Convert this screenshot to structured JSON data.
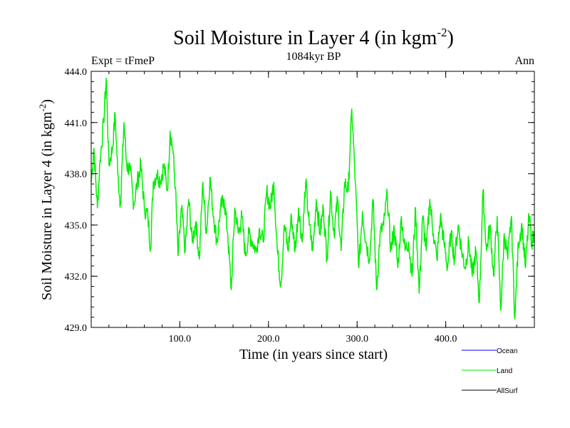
{
  "chart_data": {
    "type": "line",
    "title": "Soil Moisture in Layer 4 (in kgm",
    "title_sup": "-2",
    "title_close": ")",
    "subtitle": "1084kyr BP",
    "left_label": "Expt = tFmeP",
    "right_label": "Ann",
    "xlabel": "Time (in years since start)",
    "ylabel": "Soil Moisture in Layer 4 (in kgm",
    "ylabel_sup": "-2",
    "ylabel_close": ")",
    "xlim": [
      0,
      500
    ],
    "ylim": [
      429.0,
      444.0
    ],
    "x_ticks": [
      100,
      200,
      300,
      400
    ],
    "x_tick_labels": [
      "100.0",
      "200.0",
      "300.0",
      "400.0"
    ],
    "y_ticks": [
      429,
      432,
      435,
      438,
      441,
      444
    ],
    "y_tick_labels": [
      "429.0",
      "432.0",
      "435.0",
      "438.0",
      "441.0",
      "444.0"
    ],
    "legend": [
      {
        "name": "Ocean",
        "color": "#0000ff"
      },
      {
        "name": "Land",
        "color": "#00ee00"
      },
      {
        "name": "AllSurf",
        "color": "#000000"
      }
    ],
    "series": [
      {
        "name": "Land",
        "color": "#00ee00",
        "anchors": [
          [
            0,
            437.5
          ],
          [
            3,
            439.5
          ],
          [
            7,
            436.0
          ],
          [
            10,
            438.8
          ],
          [
            14,
            441.0
          ],
          [
            17,
            443.6
          ],
          [
            20,
            438.5
          ],
          [
            24,
            439.5
          ],
          [
            27,
            441.5
          ],
          [
            30,
            438.0
          ],
          [
            33,
            436.2
          ],
          [
            37,
            441.0
          ],
          [
            40,
            438.5
          ],
          [
            44,
            438.2
          ],
          [
            48,
            436.2
          ],
          [
            52,
            437.5
          ],
          [
            56,
            438.5
          ],
          [
            60,
            436.0
          ],
          [
            64,
            435.5
          ],
          [
            67,
            433.6
          ],
          [
            70,
            437.5
          ],
          [
            74,
            438.0
          ],
          [
            78,
            437.6
          ],
          [
            82,
            438.5
          ],
          [
            86,
            437.0
          ],
          [
            89,
            440.5
          ],
          [
            92,
            439.5
          ],
          [
            95,
            437.2
          ],
          [
            98,
            433.2
          ],
          [
            102,
            436.0
          ],
          [
            106,
            433.5
          ],
          [
            110,
            436.5
          ],
          [
            114,
            434.0
          ],
          [
            118,
            435.2
          ],
          [
            122,
            433.0
          ],
          [
            126,
            437.5
          ],
          [
            130,
            434.5
          ],
          [
            134,
            437.8
          ],
          [
            138,
            435.5
          ],
          [
            142,
            434.0
          ],
          [
            146,
            436.0
          ],
          [
            150,
            436.5
          ],
          [
            154,
            434.5
          ],
          [
            158,
            431.2
          ],
          [
            162,
            436.0
          ],
          [
            166,
            434.5
          ],
          [
            170,
            435.5
          ],
          [
            174,
            433.2
          ],
          [
            178,
            434.5
          ],
          [
            182,
            434.0
          ],
          [
            186,
            433.5
          ],
          [
            190,
            434.8
          ],
          [
            194,
            434.0
          ],
          [
            198,
            437.0
          ],
          [
            202,
            436.0
          ],
          [
            206,
            437.5
          ],
          [
            210,
            433.5
          ],
          [
            214,
            431.5
          ],
          [
            218,
            435.0
          ],
          [
            222,
            433.5
          ],
          [
            226,
            435.5
          ],
          [
            230,
            433.5
          ],
          [
            234,
            436.0
          ],
          [
            238,
            434.0
          ],
          [
            242,
            437.5
          ],
          [
            246,
            435.0
          ],
          [
            250,
            433.5
          ],
          [
            254,
            436.5
          ],
          [
            258,
            434.5
          ],
          [
            262,
            436.0
          ],
          [
            266,
            433.0
          ],
          [
            270,
            437.0
          ],
          [
            274,
            434.5
          ],
          [
            278,
            436.5
          ],
          [
            282,
            433.5
          ],
          [
            286,
            437.5
          ],
          [
            290,
            437.0
          ],
          [
            294,
            441.8
          ],
          [
            298,
            437.5
          ],
          [
            302,
            432.5
          ],
          [
            306,
            435.8
          ],
          [
            310,
            434.0
          ],
          [
            314,
            433.0
          ],
          [
            318,
            436.5
          ],
          [
            322,
            431.2
          ],
          [
            326,
            434.5
          ],
          [
            330,
            435.0
          ],
          [
            334,
            436.8
          ],
          [
            338,
            433.5
          ],
          [
            342,
            434.8
          ],
          [
            346,
            432.5
          ],
          [
            350,
            435.5
          ],
          [
            354,
            433.5
          ],
          [
            358,
            434.0
          ],
          [
            362,
            432.0
          ],
          [
            366,
            436.0
          ],
          [
            370,
            431.0
          ],
          [
            374,
            435.5
          ],
          [
            378,
            433.5
          ],
          [
            382,
            436.5
          ],
          [
            386,
            434.5
          ],
          [
            390,
            433.0
          ],
          [
            394,
            435.5
          ],
          [
            398,
            434.0
          ],
          [
            402,
            432.5
          ],
          [
            406,
            434.5
          ],
          [
            410,
            433.0
          ],
          [
            414,
            435.0
          ],
          [
            418,
            433.5
          ],
          [
            422,
            432.5
          ],
          [
            426,
            434.0
          ],
          [
            430,
            432.0
          ],
          [
            434,
            433.5
          ],
          [
            438,
            430.5
          ],
          [
            442,
            437.0
          ],
          [
            446,
            433.5
          ],
          [
            450,
            435.0
          ],
          [
            454,
            432.0
          ],
          [
            458,
            435.5
          ],
          [
            462,
            430.0
          ],
          [
            466,
            434.5
          ],
          [
            470,
            433.0
          ],
          [
            474,
            435.5
          ],
          [
            478,
            429.5
          ],
          [
            482,
            434.0
          ],
          [
            486,
            435.0
          ],
          [
            490,
            432.5
          ],
          [
            494,
            435.5
          ],
          [
            497,
            434.0
          ],
          [
            500,
            434.5
          ]
        ]
      }
    ]
  }
}
